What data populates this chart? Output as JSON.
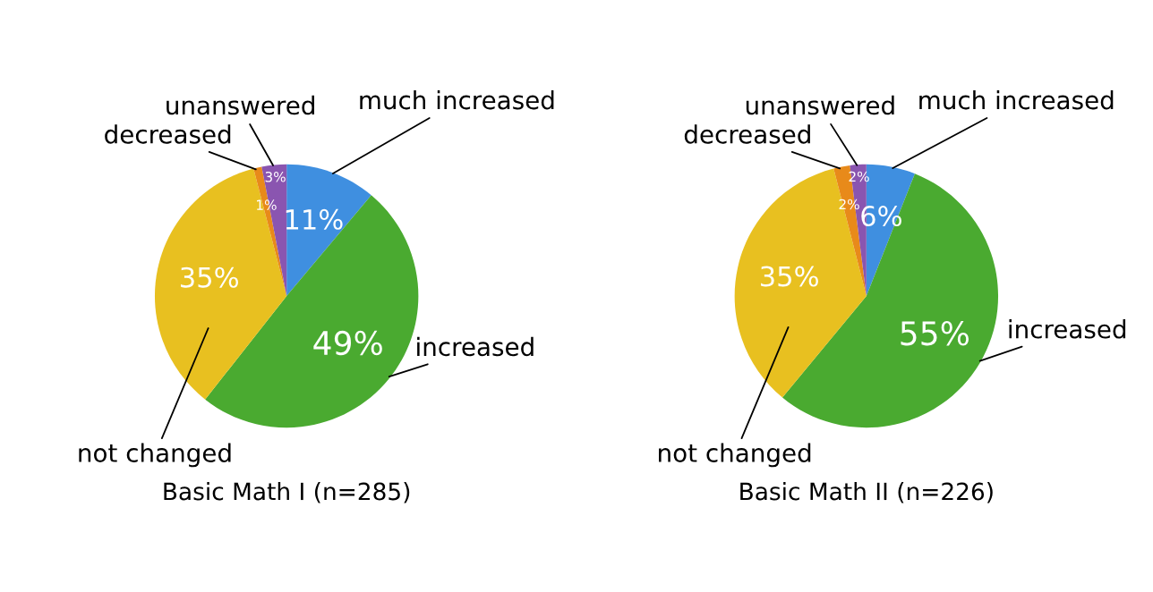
{
  "chart_data": [
    {
      "type": "pie",
      "title": "Basic Math I (n=285)",
      "categories": [
        "much increased",
        "increased",
        "not changed",
        "decreased",
        "unanswered"
      ],
      "values": [
        11,
        49,
        35,
        1,
        3
      ],
      "value_labels": [
        "11%",
        "49%",
        "35%",
        "1%",
        "3%"
      ],
      "colors": [
        "#3f8fe0",
        "#4aaa30",
        "#e8c020",
        "#e88a1a",
        "#8a55b0"
      ]
    },
    {
      "type": "pie",
      "title": "Basic Math II (n=226)",
      "categories": [
        "much increased",
        "increased",
        "not changed",
        "decreased",
        "unanswered"
      ],
      "values": [
        6,
        55,
        35,
        2,
        2
      ],
      "value_labels": [
        "6%",
        "55%",
        "35%",
        "2%",
        "2%"
      ],
      "colors": [
        "#3f8fe0",
        "#4aaa30",
        "#e8c020",
        "#e88a1a",
        "#8a55b0"
      ]
    }
  ]
}
